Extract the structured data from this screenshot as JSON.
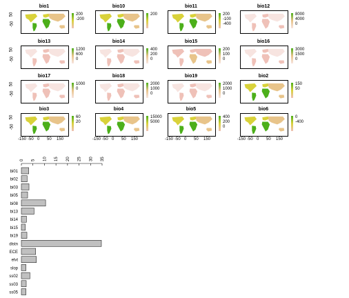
{
  "chart_data": [
    {
      "type": "heatmap",
      "panels": [
        {
          "title": "bio1",
          "legend": [
            "200",
            "-200"
          ],
          "palette": "mixed"
        },
        {
          "title": "bio10",
          "legend": [
            "200"
          ],
          "palette": "mixed"
        },
        {
          "title": "bio11",
          "legend": [
            "200",
            "-100",
            "-400"
          ],
          "palette": "mixed"
        },
        {
          "title": "bio12",
          "legend": [
            "8000",
            "4000",
            "0"
          ],
          "palette": "pale"
        },
        {
          "title": "bio13",
          "legend": [
            "1200",
            "600",
            "0"
          ],
          "palette": "pale"
        },
        {
          "title": "bio14",
          "legend": [
            "400",
            "200",
            "0"
          ],
          "palette": "pale"
        },
        {
          "title": "bio15",
          "legend": [
            "200",
            "100",
            "0"
          ],
          "palette": "orange"
        },
        {
          "title": "bio16",
          "legend": [
            "3000",
            "1500",
            "0"
          ],
          "palette": "pale"
        },
        {
          "title": "bio17",
          "legend": [
            "1000",
            "0"
          ],
          "palette": "pale"
        },
        {
          "title": "bio18",
          "legend": [
            "2000",
            "1000",
            "0"
          ],
          "palette": "pale"
        },
        {
          "title": "bio19",
          "legend": [
            "2000",
            "1000",
            "0"
          ],
          "palette": "pale"
        },
        {
          "title": "bio2",
          "legend": [
            "150",
            "50"
          ],
          "palette": "mixed"
        },
        {
          "title": "bio3",
          "legend": [
            "60",
            "20"
          ],
          "palette": "mixed"
        },
        {
          "title": "bio4",
          "legend": [
            "15000",
            "5000"
          ],
          "palette": "mixed"
        },
        {
          "title": "bio5",
          "legend": [
            "400",
            "200",
            "0"
          ],
          "palette": "mixed"
        },
        {
          "title": "bio6",
          "legend": [
            "0",
            "-400"
          ],
          "palette": "mixed"
        }
      ],
      "y_ticks": [
        "50",
        "-50"
      ],
      "x_ticks": [
        "-150",
        "-50",
        "0",
        "50",
        "150"
      ],
      "colors": {
        "green": "#4caf1a",
        "yellow": "#d9d23a",
        "tan": "#e8c48a",
        "pink": "#efc1b8",
        "pale": "#f7e4e0"
      }
    },
    {
      "type": "bar",
      "orientation": "horizontal",
      "categories": [
        "bi01",
        "bi02",
        "bi03",
        "bi05",
        "bi08",
        "bi13",
        "bi14",
        "bi15",
        "bi19",
        "distn",
        "ECE",
        "elvt",
        "slop",
        "ss02",
        "ss03",
        "ss05",
        "ss09"
      ],
      "values": [
        3.2,
        2.5,
        3.3,
        2.7,
        10.5,
        5.5,
        2.2,
        1.7,
        2.4,
        34.7,
        6.2,
        6.5,
        2.0,
        3.7,
        2.1,
        2.0,
        2.0
      ],
      "x_ticks": [
        "0",
        "5",
        "10",
        "15",
        "20",
        "25",
        "30",
        "35"
      ],
      "xlim": [
        0,
        35
      ],
      "bar_color": "#c0c0c0"
    }
  ]
}
